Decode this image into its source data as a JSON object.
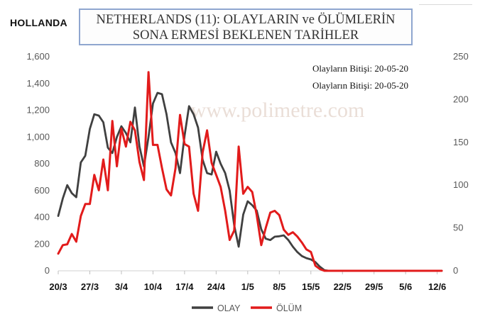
{
  "country_label": "HOLLANDA",
  "title": {
    "line1": "NETHERLANDS  (11): OLAYLARIN  ve ÖLÜMLERİN",
    "line2": "SONA ERMESİ BEKLENEN TARİHLER"
  },
  "annotations": [
    "Olayların Bitişi: 20-05-20",
    "Olayların Bitişi: 20-05-20"
  ],
  "watermark": "www.polimetre.com",
  "chart_data": {
    "type": "line",
    "x_tick_labels": [
      "20/3",
      "27/3",
      "3/4",
      "10/4",
      "17/4",
      "24/4",
      "1/5",
      "8/5",
      "15/5",
      "22/5",
      "29/5",
      "5/6",
      "12/6"
    ],
    "x_tick_day_index": [
      0,
      7,
      14,
      21,
      28,
      35,
      42,
      49,
      56,
      63,
      70,
      77,
      84
    ],
    "x_range_days": [
      0,
      85
    ],
    "y_left": {
      "ticks": [
        "0",
        "200",
        "400",
        "600",
        "800",
        "1,000",
        "1,200",
        "1,400",
        "1,600"
      ],
      "range": [
        0,
        1600
      ]
    },
    "y_right": {
      "ticks": [
        "0",
        "50",
        "100",
        "150",
        "200",
        "250"
      ],
      "range": [
        0,
        250
      ]
    },
    "legend_position": "bottom-center",
    "grid": false,
    "series": [
      {
        "name": "OLAY",
        "axis": "left",
        "color": "#404040",
        "values": [
          410,
          540,
          640,
          580,
          550,
          810,
          860,
          1060,
          1170,
          1160,
          1110,
          920,
          880,
          1000,
          1080,
          1030,
          960,
          1220,
          930,
          780,
          1000,
          1250,
          1330,
          1320,
          1170,
          960,
          880,
          730,
          1010,
          1230,
          1170,
          1070,
          830,
          730,
          720,
          890,
          800,
          730,
          600,
          340,
          180,
          420,
          520,
          490,
          450,
          310,
          240,
          230,
          255,
          258,
          265,
          230,
          180,
          140,
          110,
          95,
          85,
          65,
          30,
          5,
          0,
          0,
          0,
          0,
          0,
          0,
          0,
          0,
          0,
          0,
          0,
          0,
          0,
          0,
          0,
          0,
          0,
          0,
          0,
          0,
          0,
          0,
          0,
          0,
          0,
          0
        ]
      },
      {
        "name": "ÖLÜM",
        "axis": "right",
        "color": "#e21b1b",
        "values": [
          20,
          30,
          31,
          43,
          34,
          64,
          78,
          78,
          112,
          94,
          130,
          94,
          175,
          122,
          166,
          145,
          174,
          164,
          127,
          106,
          232,
          147,
          147,
          120,
          95,
          88,
          120,
          182,
          148,
          145,
          90,
          70,
          138,
          164,
          126,
          112,
          98,
          70,
          36,
          47,
          145,
          90,
          98,
          92,
          65,
          30,
          50,
          68,
          70,
          65,
          48,
          42,
          45,
          40,
          33,
          25,
          22,
          6,
          2,
          0,
          0,
          0,
          0,
          0,
          0,
          0,
          0,
          0,
          0,
          0,
          0,
          0,
          0,
          0,
          0,
          0,
          0,
          0,
          0,
          0,
          0,
          0,
          0,
          0,
          0,
          0
        ]
      }
    ]
  }
}
